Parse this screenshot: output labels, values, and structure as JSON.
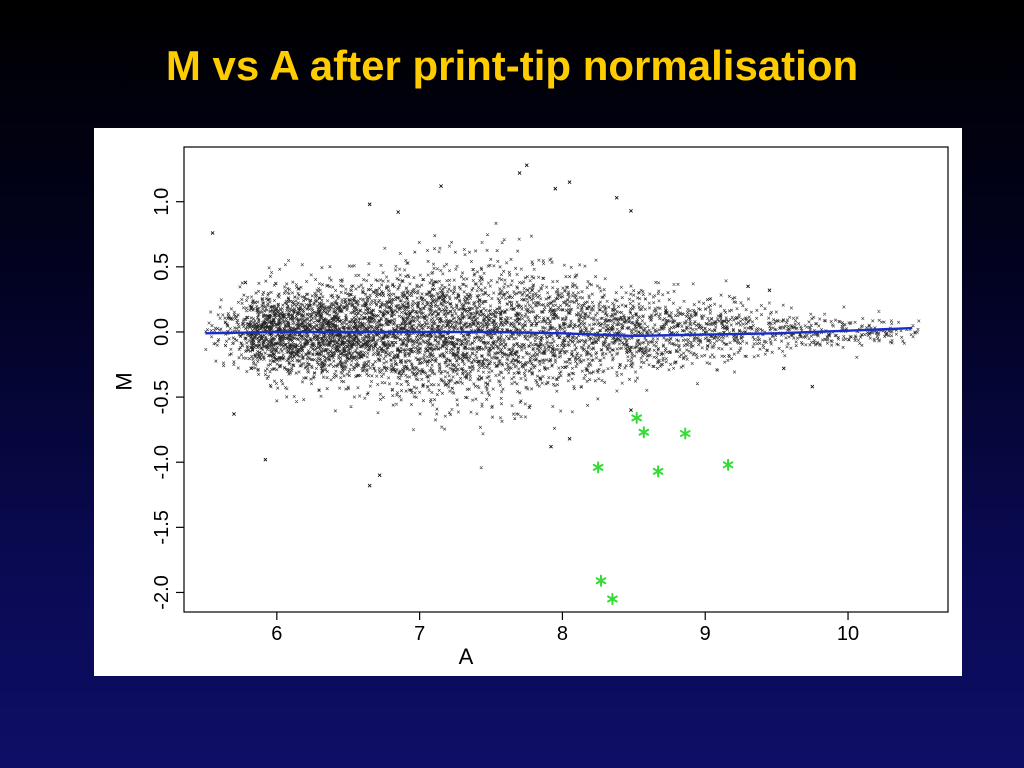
{
  "slide": {
    "title": "M vs A after print-tip normalisation"
  },
  "colors": {
    "background_top": "#000000",
    "background_bottom": "#0e0e66",
    "title": "#ffcc00",
    "points": "#000000",
    "highlight": "#33dd33",
    "fit_line": "#1a2ec8"
  },
  "chart_data": {
    "type": "scatter",
    "xlabel": "A",
    "ylabel": "M",
    "xlim": [
      5.35,
      10.7
    ],
    "ylim": [
      -2.15,
      1.42
    ],
    "xticks": [
      6,
      7,
      8,
      9,
      10
    ],
    "xtick_labels": [
      "6",
      "7",
      "8",
      "9",
      "10"
    ],
    "yticks": [
      -2.0,
      -1.5,
      -1.0,
      -0.5,
      0.0,
      0.5,
      1.0
    ],
    "ytick_labels": [
      "-2.0",
      "-1.5",
      "-1.0",
      "-0.5",
      "0.0",
      "0.5",
      "1.0"
    ],
    "grid": false,
    "legend": "none",
    "point_marker": "x",
    "approx_point_count": 6000,
    "cloud_profile": [
      {
        "a": 5.55,
        "sd": 0.1
      },
      {
        "a": 5.85,
        "sd": 0.14
      },
      {
        "a": 6.0,
        "sd": 0.16
      },
      {
        "a": 6.5,
        "sd": 0.19
      },
      {
        "a": 7.0,
        "sd": 0.24
      },
      {
        "a": 7.5,
        "sd": 0.27
      },
      {
        "a": 7.8,
        "sd": 0.26
      },
      {
        "a": 8.0,
        "sd": 0.22
      },
      {
        "a": 8.5,
        "sd": 0.17
      },
      {
        "a": 9.0,
        "sd": 0.13
      },
      {
        "a": 9.5,
        "sd": 0.09
      },
      {
        "a": 10.0,
        "sd": 0.06
      },
      {
        "a": 10.45,
        "sd": 0.04
      }
    ],
    "density_profile": [
      {
        "a": 5.5,
        "w": 0.05
      },
      {
        "a": 5.75,
        "w": 0.25
      },
      {
        "a": 5.85,
        "w": 0.85
      },
      {
        "a": 6.0,
        "w": 1.0
      },
      {
        "a": 6.5,
        "w": 0.95
      },
      {
        "a": 7.0,
        "w": 0.85
      },
      {
        "a": 7.5,
        "w": 0.72
      },
      {
        "a": 8.0,
        "w": 0.55
      },
      {
        "a": 8.5,
        "w": 0.42
      },
      {
        "a": 9.0,
        "w": 0.3
      },
      {
        "a": 9.5,
        "w": 0.18
      },
      {
        "a": 10.0,
        "w": 0.1
      },
      {
        "a": 10.5,
        "w": 0.04
      }
    ],
    "outliers": [
      {
        "a": 5.55,
        "m": 0.76
      },
      {
        "a": 5.78,
        "m": 0.38
      },
      {
        "a": 5.7,
        "m": -0.63
      },
      {
        "a": 5.82,
        "m": -0.28
      },
      {
        "a": 5.92,
        "m": -0.98
      },
      {
        "a": 6.65,
        "m": -1.18
      },
      {
        "a": 6.72,
        "m": -1.1
      },
      {
        "a": 6.65,
        "m": 0.98
      },
      {
        "a": 6.85,
        "m": 0.92
      },
      {
        "a": 7.15,
        "m": 1.12
      },
      {
        "a": 7.75,
        "m": 1.28
      },
      {
        "a": 7.7,
        "m": 1.22
      },
      {
        "a": 7.95,
        "m": 1.1
      },
      {
        "a": 8.05,
        "m": 1.15
      },
      {
        "a": 8.38,
        "m": 1.03
      },
      {
        "a": 8.48,
        "m": 0.93
      },
      {
        "a": 8.48,
        "m": -0.6
      },
      {
        "a": 8.05,
        "m": -0.82
      },
      {
        "a": 7.92,
        "m": -0.88
      },
      {
        "a": 9.3,
        "m": 0.35
      },
      {
        "a": 9.55,
        "m": -0.28
      },
      {
        "a": 9.75,
        "m": -0.42
      },
      {
        "a": 9.45,
        "m": 0.32
      }
    ],
    "highlight_points": [
      {
        "a": 8.52,
        "m": -0.66
      },
      {
        "a": 8.57,
        "m": -0.77
      },
      {
        "a": 8.86,
        "m": -0.78
      },
      {
        "a": 8.25,
        "m": -1.04
      },
      {
        "a": 8.67,
        "m": -1.07
      },
      {
        "a": 9.16,
        "m": -1.02
      },
      {
        "a": 8.27,
        "m": -1.91
      },
      {
        "a": 8.35,
        "m": -2.05
      }
    ],
    "fit_line": [
      {
        "a": 5.5,
        "m": -0.01
      },
      {
        "a": 6.0,
        "m": 0.0
      },
      {
        "a": 6.5,
        "m": 0.0
      },
      {
        "a": 7.0,
        "m": 0.0
      },
      {
        "a": 7.5,
        "m": 0.0
      },
      {
        "a": 8.0,
        "m": -0.01
      },
      {
        "a": 8.5,
        "m": -0.03
      },
      {
        "a": 9.0,
        "m": -0.02
      },
      {
        "a": 9.5,
        "m": -0.01
      },
      {
        "a": 10.0,
        "m": 0.01
      },
      {
        "a": 10.45,
        "m": 0.03
      }
    ]
  }
}
